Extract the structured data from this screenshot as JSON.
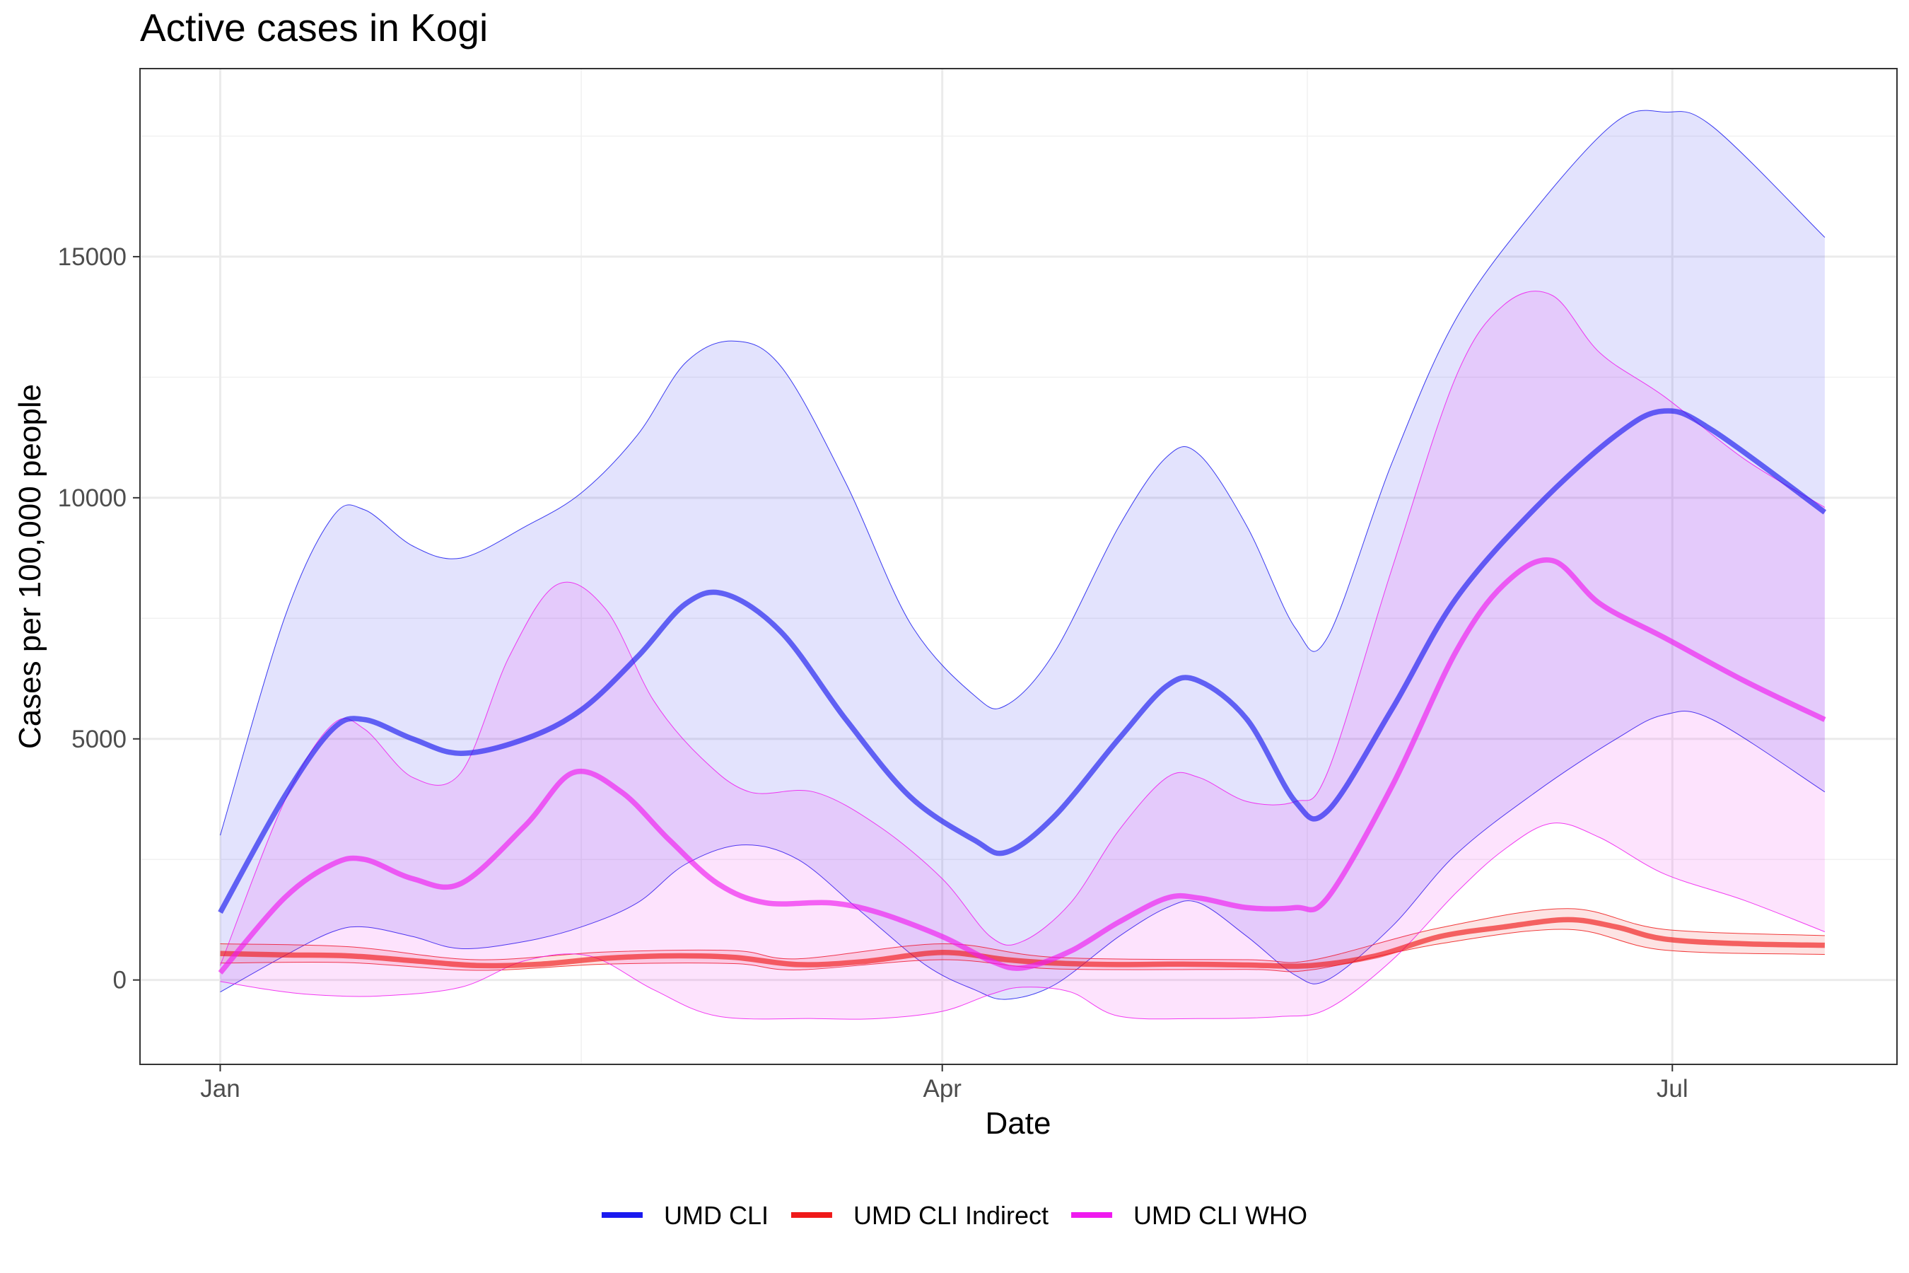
{
  "chart_data": {
    "type": "line",
    "title": "Active cases in Kogi",
    "xlabel": "Date",
    "ylabel": "Cases per 100,000 people",
    "x_ticks": [
      {
        "label": "Jan",
        "day": 0
      },
      {
        "label": "Apr",
        "day": 90
      },
      {
        "label": "Jul",
        "day": 181
      }
    ],
    "x_range_days": [
      -10,
      209
    ],
    "y_ticks": [
      0,
      5000,
      10000,
      15000
    ],
    "ylim": [
      -1750,
      18900
    ],
    "grid": true,
    "legend_position": "bottom",
    "series": [
      {
        "name": "UMD CLI",
        "color": "#1a1aef",
        "points": [
          [
            0,
            1400
          ],
          [
            8,
            3800
          ],
          [
            14,
            5200
          ],
          [
            18,
            5400
          ],
          [
            24,
            5000
          ],
          [
            30,
            4700
          ],
          [
            38,
            5000
          ],
          [
            45,
            5600
          ],
          [
            52,
            6700
          ],
          [
            58,
            7800
          ],
          [
            63,
            8000
          ],
          [
            70,
            7200
          ],
          [
            78,
            5400
          ],
          [
            86,
            3800
          ],
          [
            94,
            2900
          ],
          [
            98,
            2650
          ],
          [
            104,
            3400
          ],
          [
            112,
            5000
          ],
          [
            118,
            6100
          ],
          [
            122,
            6200
          ],
          [
            128,
            5400
          ],
          [
            134,
            3700
          ],
          [
            138,
            3500
          ],
          [
            146,
            5600
          ],
          [
            154,
            7900
          ],
          [
            164,
            9800
          ],
          [
            174,
            11300
          ],
          [
            180,
            11800
          ],
          [
            186,
            11400
          ],
          [
            200,
            9700
          ]
        ],
        "lower": [
          [
            0,
            -250
          ],
          [
            8,
            500
          ],
          [
            14,
            1000
          ],
          [
            18,
            1100
          ],
          [
            24,
            900
          ],
          [
            30,
            650
          ],
          [
            38,
            800
          ],
          [
            45,
            1100
          ],
          [
            52,
            1600
          ],
          [
            58,
            2400
          ],
          [
            65,
            2800
          ],
          [
            72,
            2500
          ],
          [
            80,
            1400
          ],
          [
            88,
            300
          ],
          [
            94,
            -200
          ],
          [
            98,
            -400
          ],
          [
            104,
            -100
          ],
          [
            112,
            900
          ],
          [
            118,
            1500
          ],
          [
            122,
            1600
          ],
          [
            128,
            900
          ],
          [
            134,
            100
          ],
          [
            138,
            0
          ],
          [
            146,
            1100
          ],
          [
            154,
            2600
          ],
          [
            164,
            3900
          ],
          [
            174,
            5000
          ],
          [
            180,
            5500
          ],
          [
            186,
            5400
          ],
          [
            200,
            3900
          ]
        ],
        "upper": [
          [
            0,
            3000
          ],
          [
            8,
            7500
          ],
          [
            14,
            9600
          ],
          [
            18,
            9750
          ],
          [
            24,
            9000
          ],
          [
            30,
            8750
          ],
          [
            38,
            9400
          ],
          [
            45,
            10100
          ],
          [
            52,
            11300
          ],
          [
            58,
            12800
          ],
          [
            64,
            13250
          ],
          [
            70,
            12700
          ],
          [
            78,
            10300
          ],
          [
            86,
            7400
          ],
          [
            94,
            5900
          ],
          [
            98,
            5700
          ],
          [
            104,
            6800
          ],
          [
            112,
            9400
          ],
          [
            118,
            10850
          ],
          [
            122,
            10900
          ],
          [
            128,
            9400
          ],
          [
            134,
            7300
          ],
          [
            138,
            7100
          ],
          [
            146,
            10700
          ],
          [
            154,
            13700
          ],
          [
            164,
            16000
          ],
          [
            174,
            17800
          ],
          [
            180,
            18000
          ],
          [
            186,
            17700
          ],
          [
            200,
            15400
          ]
        ]
      },
      {
        "name": "UMD CLI Indirect",
        "color": "#ef1a1a",
        "points": [
          [
            0,
            550
          ],
          [
            8,
            520
          ],
          [
            16,
            500
          ],
          [
            24,
            400
          ],
          [
            32,
            300
          ],
          [
            40,
            330
          ],
          [
            48,
            450
          ],
          [
            56,
            500
          ],
          [
            64,
            470
          ],
          [
            72,
            320
          ],
          [
            80,
            380
          ],
          [
            90,
            570
          ],
          [
            98,
            420
          ],
          [
            104,
            350
          ],
          [
            112,
            320
          ],
          [
            120,
            330
          ],
          [
            128,
            310
          ],
          [
            136,
            300
          ],
          [
            144,
            500
          ],
          [
            152,
            900
          ],
          [
            160,
            1100
          ],
          [
            168,
            1250
          ],
          [
            174,
            1100
          ],
          [
            180,
            850
          ],
          [
            190,
            750
          ],
          [
            200,
            720
          ]
        ],
        "lower": [
          [
            0,
            350
          ],
          [
            16,
            360
          ],
          [
            32,
            200
          ],
          [
            48,
            330
          ],
          [
            64,
            340
          ],
          [
            72,
            210
          ],
          [
            90,
            420
          ],
          [
            104,
            230
          ],
          [
            128,
            220
          ],
          [
            136,
            210
          ],
          [
            152,
            750
          ],
          [
            168,
            1050
          ],
          [
            180,
            620
          ],
          [
            200,
            530
          ]
        ],
        "upper": [
          [
            0,
            750
          ],
          [
            16,
            690
          ],
          [
            32,
            420
          ],
          [
            48,
            580
          ],
          [
            64,
            610
          ],
          [
            72,
            440
          ],
          [
            90,
            750
          ],
          [
            104,
            470
          ],
          [
            128,
            420
          ],
          [
            136,
            410
          ],
          [
            152,
            1080
          ],
          [
            168,
            1480
          ],
          [
            180,
            1050
          ],
          [
            200,
            920
          ]
        ]
      },
      {
        "name": "UMD CLI WHO",
        "color": "#ef1aef",
        "points": [
          [
            0,
            150
          ],
          [
            8,
            1700
          ],
          [
            14,
            2400
          ],
          [
            18,
            2500
          ],
          [
            24,
            2100
          ],
          [
            30,
            2000
          ],
          [
            38,
            3200
          ],
          [
            44,
            4300
          ],
          [
            50,
            3900
          ],
          [
            56,
            2900
          ],
          [
            62,
            2000
          ],
          [
            68,
            1600
          ],
          [
            76,
            1600
          ],
          [
            82,
            1400
          ],
          [
            90,
            900
          ],
          [
            96,
            400
          ],
          [
            100,
            250
          ],
          [
            106,
            600
          ],
          [
            112,
            1200
          ],
          [
            118,
            1700
          ],
          [
            122,
            1700
          ],
          [
            128,
            1500
          ],
          [
            134,
            1500
          ],
          [
            138,
            1700
          ],
          [
            146,
            4000
          ],
          [
            154,
            6800
          ],
          [
            160,
            8200
          ],
          [
            166,
            8700
          ],
          [
            172,
            7800
          ],
          [
            180,
            7100
          ],
          [
            190,
            6200
          ],
          [
            200,
            5400
          ]
        ],
        "lower": [
          [
            0,
            -30
          ],
          [
            6,
            -200
          ],
          [
            12,
            -310
          ],
          [
            20,
            -330
          ],
          [
            30,
            -150
          ],
          [
            38,
            400
          ],
          [
            46,
            500
          ],
          [
            54,
            -200
          ],
          [
            62,
            -750
          ],
          [
            74,
            -800
          ],
          [
            82,
            -800
          ],
          [
            90,
            -650
          ],
          [
            96,
            -300
          ],
          [
            100,
            -150
          ],
          [
            106,
            -250
          ],
          [
            112,
            -750
          ],
          [
            122,
            -800
          ],
          [
            132,
            -760
          ],
          [
            138,
            -600
          ],
          [
            146,
            400
          ],
          [
            154,
            1800
          ],
          [
            160,
            2700
          ],
          [
            166,
            3250
          ],
          [
            172,
            2950
          ],
          [
            180,
            2200
          ],
          [
            190,
            1650
          ],
          [
            200,
            1000
          ]
        ],
        "upper": [
          [
            0,
            300
          ],
          [
            8,
            3700
          ],
          [
            14,
            5300
          ],
          [
            18,
            5200
          ],
          [
            24,
            4200
          ],
          [
            30,
            4300
          ],
          [
            36,
            6700
          ],
          [
            42,
            8200
          ],
          [
            48,
            7700
          ],
          [
            54,
            5800
          ],
          [
            60,
            4600
          ],
          [
            66,
            3900
          ],
          [
            74,
            3900
          ],
          [
            82,
            3200
          ],
          [
            90,
            2100
          ],
          [
            96,
            900
          ],
          [
            100,
            800
          ],
          [
            106,
            1600
          ],
          [
            112,
            3100
          ],
          [
            118,
            4200
          ],
          [
            122,
            4200
          ],
          [
            128,
            3700
          ],
          [
            134,
            3700
          ],
          [
            138,
            4300
          ],
          [
            146,
            8500
          ],
          [
            154,
            12500
          ],
          [
            160,
            14000
          ],
          [
            166,
            14200
          ],
          [
            172,
            13000
          ],
          [
            180,
            12100
          ],
          [
            190,
            10800
          ],
          [
            200,
            9800
          ]
        ]
      }
    ]
  }
}
